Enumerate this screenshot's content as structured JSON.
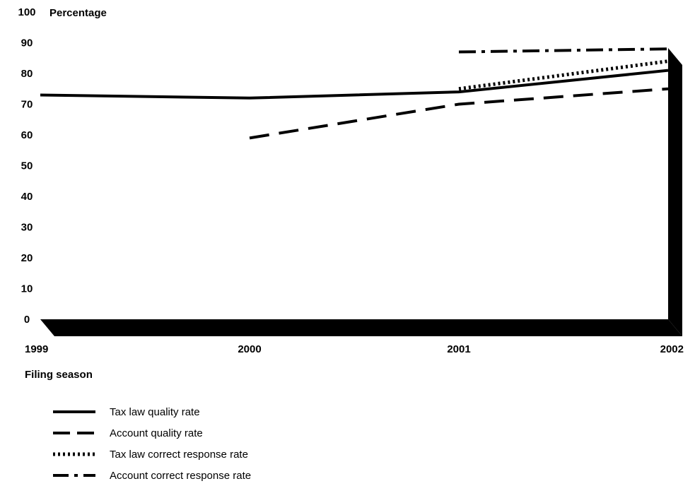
{
  "chart_data": {
    "type": "line",
    "ylabel": "Percentage",
    "xlabel": "Filing season",
    "x": [
      "1999",
      "2000",
      "2001",
      "2002"
    ],
    "yticks": [
      "0",
      "10",
      "20",
      "30",
      "40",
      "50",
      "60",
      "70",
      "80",
      "90",
      "100"
    ],
    "ylim": [
      0,
      100
    ],
    "grid": false,
    "legend_position": "bottom-left",
    "series": [
      {
        "name": "Tax law quality rate",
        "style": "solid",
        "values": [
          73,
          72,
          74,
          81
        ]
      },
      {
        "name": "Account quality rate",
        "style": "dashed",
        "values": [
          null,
          59,
          70,
          75
        ]
      },
      {
        "name": "Tax law correct response rate",
        "style": "dotted",
        "values": [
          null,
          null,
          75,
          84
        ]
      },
      {
        "name": "Account correct response rate",
        "style": "dashdot",
        "values": [
          null,
          null,
          87,
          88
        ]
      }
    ]
  }
}
